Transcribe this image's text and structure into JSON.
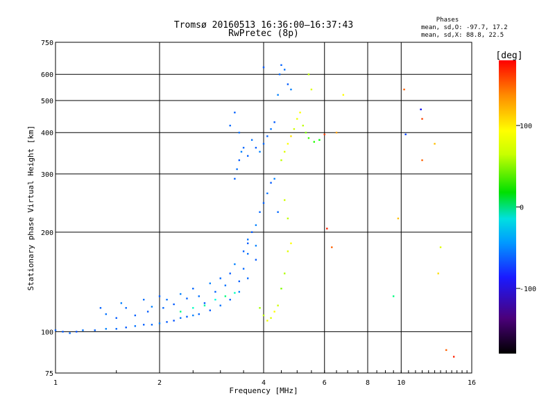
{
  "chart_data": {
    "type": "scatter",
    "title": "Tromsø 20160513 16:36:00—16:37:43",
    "subtitle": "RwPretec (8p)",
    "stats": {
      "heading": "Phases",
      "line1": "mean, sd,O: -97.7, 17.2",
      "line2": "mean, sd,X:  88.8, 22.5"
    },
    "xlabel": "Frequency [MHz]",
    "ylabel": "Stationary phase Virtual Height [km]",
    "x_scale": "log",
    "y_scale": "log",
    "xlim": [
      1,
      16
    ],
    "ylim": [
      75,
      750
    ],
    "x_ticks": [
      1,
      2,
      4,
      6,
      8,
      10,
      16
    ],
    "x_tick_labels": [
      "1",
      "2",
      "4",
      "6",
      "8",
      "10",
      "16"
    ],
    "y_ticks": [
      75,
      100,
      200,
      300,
      400,
      500,
      600,
      750
    ],
    "y_tick_labels": [
      "75",
      "100",
      "200",
      "300",
      "400",
      "500",
      "600",
      "750"
    ],
    "grid": true,
    "colorbar": {
      "label": "[deg]",
      "range": [
        -180,
        180
      ],
      "ticks": [
        -100,
        0,
        100
      ],
      "tick_labels": [
        "-100",
        "0",
        "100"
      ]
    },
    "series": [
      {
        "points": [
          [
            1.0,
            101,
            -110
          ],
          [
            1.05,
            100,
            -112
          ],
          [
            1.1,
            99,
            -108
          ],
          [
            1.15,
            100,
            -115
          ],
          [
            1.2,
            101,
            -105
          ],
          [
            1.3,
            101,
            -110
          ],
          [
            1.4,
            102,
            -100
          ],
          [
            1.5,
            102,
            -108
          ],
          [
            1.6,
            103,
            -112
          ],
          [
            1.7,
            104,
            -105
          ],
          [
            1.8,
            105,
            -110
          ],
          [
            1.9,
            105,
            -108
          ],
          [
            2.0,
            106,
            -100
          ],
          [
            2.1,
            107,
            -112
          ],
          [
            2.2,
            108,
            -115
          ],
          [
            2.3,
            110,
            -105
          ],
          [
            2.4,
            111,
            -110
          ],
          [
            2.5,
            112,
            -100
          ],
          [
            2.6,
            113,
            -108
          ],
          [
            2.8,
            116,
            -112
          ],
          [
            3.0,
            120,
            -105
          ],
          [
            3.2,
            125,
            -110
          ],
          [
            3.4,
            132,
            -100
          ],
          [
            3.6,
            145,
            -108
          ],
          [
            3.8,
            165,
            -112
          ],
          [
            1.35,
            118,
            -110
          ],
          [
            1.4,
            113,
            -105
          ],
          [
            1.5,
            110,
            -112
          ],
          [
            1.55,
            122,
            -100
          ],
          [
            1.6,
            118,
            -108
          ],
          [
            1.7,
            112,
            -110
          ],
          [
            1.8,
            125,
            -105
          ],
          [
            1.85,
            115,
            -112
          ],
          [
            1.9,
            119,
            -100
          ],
          [
            2.0,
            128,
            -110
          ],
          [
            2.05,
            118,
            -108
          ],
          [
            2.1,
            125,
            -105
          ],
          [
            2.2,
            121,
            -112
          ],
          [
            2.3,
            130,
            -100
          ],
          [
            2.4,
            126,
            -110
          ],
          [
            2.5,
            135,
            -108
          ],
          [
            2.6,
            128,
            -105
          ],
          [
            2.7,
            122,
            -112
          ],
          [
            2.8,
            140,
            -100
          ],
          [
            2.9,
            132,
            -110
          ],
          [
            3.0,
            145,
            -108
          ],
          [
            3.1,
            138,
            -105
          ],
          [
            3.2,
            150,
            -112
          ],
          [
            3.3,
            160,
            -100
          ],
          [
            3.4,
            142,
            -110
          ],
          [
            3.5,
            155,
            -108
          ],
          [
            3.6,
            172,
            -105
          ],
          [
            2.3,
            115,
            -20
          ],
          [
            2.5,
            118,
            -40
          ],
          [
            2.7,
            120,
            -30
          ],
          [
            2.9,
            125,
            -50
          ],
          [
            3.1,
            128,
            -20
          ],
          [
            3.3,
            131,
            -40
          ],
          [
            3.5,
            175,
            -110
          ],
          [
            3.6,
            190,
            -105
          ],
          [
            3.7,
            200,
            -112
          ],
          [
            3.8,
            210,
            -100
          ],
          [
            3.9,
            230,
            -108
          ],
          [
            4.0,
            245,
            -110
          ],
          [
            4.1,
            262,
            -105
          ],
          [
            4.2,
            282,
            -112
          ],
          [
            4.3,
            290,
            -100
          ],
          [
            4.4,
            230,
            -108
          ],
          [
            3.6,
            185,
            -112
          ],
          [
            3.8,
            182,
            -100
          ],
          [
            3.3,
            290,
            -110
          ],
          [
            3.35,
            310,
            -105
          ],
          [
            3.4,
            330,
            -112
          ],
          [
            3.45,
            350,
            -100
          ],
          [
            3.5,
            360,
            -108
          ],
          [
            3.6,
            340,
            -110
          ],
          [
            3.7,
            380,
            -105
          ],
          [
            3.8,
            360,
            -112
          ],
          [
            3.9,
            350,
            -100
          ],
          [
            4.0,
            370,
            -108
          ],
          [
            4.1,
            390,
            -110
          ],
          [
            4.2,
            410,
            -105
          ],
          [
            4.3,
            430,
            -112
          ],
          [
            4.4,
            520,
            -100
          ],
          [
            4.45,
            600,
            -108
          ],
          [
            4.5,
            640,
            -110
          ],
          [
            4.6,
            620,
            -105
          ],
          [
            4.7,
            560,
            -112
          ],
          [
            4.8,
            540,
            -100
          ],
          [
            3.2,
            420,
            -108
          ],
          [
            3.3,
            460,
            -110
          ],
          [
            3.4,
            400,
            -105
          ],
          [
            4.0,
            630,
            -112
          ],
          [
            3.9,
            118,
            70
          ],
          [
            4.0,
            112,
            80
          ],
          [
            4.1,
            108,
            95
          ],
          [
            4.2,
            110,
            90
          ],
          [
            4.3,
            115,
            100
          ],
          [
            4.4,
            120,
            85
          ],
          [
            4.5,
            135,
            60
          ],
          [
            4.6,
            150,
            75
          ],
          [
            4.7,
            175,
            90
          ],
          [
            4.8,
            185,
            100
          ],
          [
            4.7,
            220,
            80
          ],
          [
            4.6,
            250,
            85
          ],
          [
            4.5,
            330,
            80
          ],
          [
            4.6,
            350,
            90
          ],
          [
            4.7,
            370,
            100
          ],
          [
            4.8,
            390,
            110
          ],
          [
            4.9,
            410,
            85
          ],
          [
            5.0,
            440,
            95
          ],
          [
            5.1,
            460,
            100
          ],
          [
            5.2,
            420,
            80
          ],
          [
            5.3,
            400,
            60
          ],
          [
            5.4,
            385,
            40
          ],
          [
            5.6,
            375,
            30
          ],
          [
            5.8,
            380,
            20
          ],
          [
            5.5,
            540,
            90
          ],
          [
            5.4,
            600,
            80
          ],
          [
            6.0,
            395,
            160
          ],
          [
            6.5,
            400,
            130
          ],
          [
            6.8,
            520,
            100
          ],
          [
            6.3,
            180,
            150
          ],
          [
            6.1,
            205,
            170
          ],
          [
            9.5,
            128,
            -20
          ],
          [
            9.8,
            220,
            120
          ],
          [
            10.2,
            540,
            150
          ],
          [
            11.5,
            440,
            160
          ],
          [
            11.5,
            330,
            150
          ],
          [
            12.5,
            370,
            120
          ],
          [
            12.8,
            150,
            110
          ],
          [
            13.0,
            180,
            90
          ],
          [
            13.5,
            88,
            150
          ],
          [
            14.2,
            84,
            170
          ],
          [
            11.4,
            470,
            -140
          ],
          [
            10.3,
            395,
            -120
          ]
        ]
      }
    ]
  }
}
